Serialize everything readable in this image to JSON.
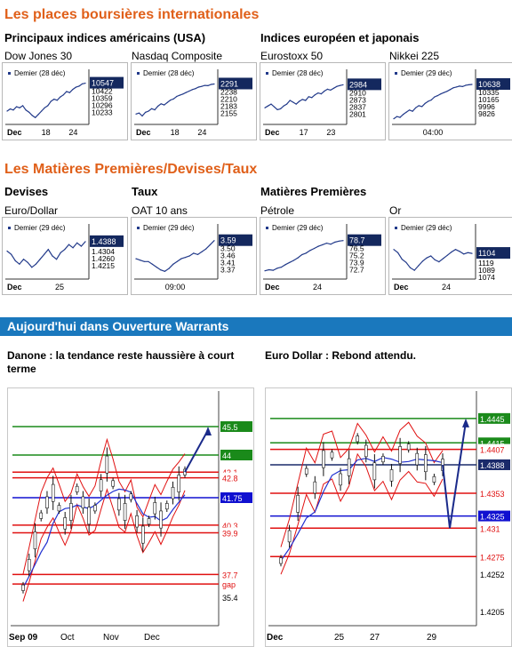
{
  "headings": {
    "indices": "Les places boursières internationales",
    "us": "Principaux indices américains (USA)",
    "eu": "Indices européen et japonais",
    "commodities": "Les Matières Premières/Devises/Taux",
    "devises": "Devises",
    "taux": "Taux",
    "matieres": "Matières Premières",
    "warrants": "Aujourd'hui dans Ouverture Warrants"
  },
  "chart_data": [
    {
      "type": "line",
      "title": "Dow Jones 30",
      "legend": "Demier (28 déc)",
      "current": "10547",
      "yticks": [
        "10422",
        "10359",
        "10296",
        "10233"
      ],
      "xticks": [
        "Dec",
        "18",
        "24"
      ],
      "ylim": [
        10200,
        10560
      ],
      "values": [
        10290,
        10310,
        10300,
        10330,
        10320,
        10340,
        10300,
        10280,
        10250,
        10230,
        10260,
        10290,
        10320,
        10340,
        10380,
        10400,
        10390,
        10420,
        10440,
        10470,
        10460,
        10490,
        10510,
        10520,
        10540,
        10547
      ]
    },
    {
      "type": "line",
      "title": "Nasdaq Composite",
      "legend": "Demier (28 déc)",
      "current": "2291",
      "yticks": [
        "2238",
        "2210",
        "2183",
        "2155"
      ],
      "xticks": [
        "Dec",
        "18",
        "24"
      ],
      "ylim": [
        2140,
        2300
      ],
      "values": [
        2168,
        2172,
        2160,
        2175,
        2180,
        2190,
        2185,
        2200,
        2210,
        2205,
        2215,
        2225,
        2230,
        2240,
        2245,
        2250,
        2256,
        2262,
        2268,
        2272,
        2278,
        2281,
        2285,
        2284,
        2289,
        2291
      ]
    },
    {
      "type": "line",
      "title": "Eurostoxx 50",
      "legend": "Demier (28 déc)",
      "current": "2984",
      "yticks": [
        "2910",
        "2873",
        "2837",
        "2801"
      ],
      "xticks": [
        "Dec",
        "17",
        "23"
      ],
      "ylim": [
        2790,
        3000
      ],
      "values": [
        2860,
        2870,
        2880,
        2865,
        2850,
        2855,
        2870,
        2880,
        2900,
        2890,
        2880,
        2895,
        2905,
        2900,
        2920,
        2915,
        2930,
        2940,
        2935,
        2950,
        2960,
        2955,
        2965,
        2975,
        2980,
        2984
      ]
    },
    {
      "type": "line",
      "title": "Nikkei 225",
      "legend": "Demier (29 déc)",
      "current": "10638",
      "yticks": [
        "10335",
        "10165",
        "9996",
        "9826"
      ],
      "xticks": [
        "04:00"
      ],
      "ylim": [
        9800,
        10700
      ],
      "values": [
        9850,
        9900,
        9880,
        9950,
        10000,
        10050,
        10020,
        10100,
        10150,
        10130,
        10200,
        10250,
        10280,
        10350,
        10380,
        10420,
        10450,
        10480,
        10520,
        10560,
        10580,
        10600,
        10590,
        10620,
        10630,
        10638
      ]
    },
    {
      "type": "line",
      "title": "Euro/Dollar",
      "legend": "Demier (29 déc)",
      "current": "1.4388",
      "yticks": [
        "1.4304",
        "1.4260",
        "1.4215"
      ],
      "xticks": [
        "Dec",
        "25"
      ],
      "ylim": [
        1.418,
        1.442
      ],
      "values": [
        1.433,
        1.431,
        1.427,
        1.425,
        1.428,
        1.426,
        1.423,
        1.425,
        1.428,
        1.431,
        1.434,
        1.43,
        1.428,
        1.432,
        1.434,
        1.437,
        1.435,
        1.438,
        1.436,
        1.4388
      ]
    },
    {
      "type": "line",
      "title": "OAT 10 ans",
      "legend": "Demier (29 déc)",
      "current": "3.59",
      "yticks": [
        "3.50",
        "3.46",
        "3.41",
        "3.37"
      ],
      "xticks": [
        "09:00"
      ],
      "ylim": [
        3.34,
        3.62
      ],
      "values": [
        3.46,
        3.45,
        3.44,
        3.44,
        3.42,
        3.4,
        3.38,
        3.37,
        3.39,
        3.42,
        3.44,
        3.46,
        3.47,
        3.48,
        3.5,
        3.49,
        3.51,
        3.53,
        3.56,
        3.59
      ]
    },
    {
      "type": "line",
      "title": "Pétrole",
      "legend": "Demier (29 déc)",
      "current": "78.7",
      "yticks": [
        "76.5",
        "75.2",
        "73.9",
        "72.7"
      ],
      "xticks": [
        "Dec",
        "24"
      ],
      "ylim": [
        72,
        79.5
      ],
      "values": [
        72.9,
        73.1,
        73.0,
        73.4,
        73.6,
        74.1,
        74.5,
        74.9,
        75.4,
        76.0,
        76.3,
        76.8,
        77.2,
        77.6,
        77.9,
        78.2,
        78.0,
        78.4,
        78.6,
        78.7
      ]
    },
    {
      "type": "line",
      "title": "Or",
      "legend": "Demier (29 déc)",
      "current": "1104",
      "yticks": [
        "1119",
        "1089",
        "1074"
      ],
      "xticks": [
        "Dec",
        "24"
      ],
      "ylim": [
        1070,
        1130
      ],
      "values": [
        1110,
        1105,
        1095,
        1090,
        1082,
        1078,
        1085,
        1092,
        1097,
        1100,
        1094,
        1091,
        1096,
        1101,
        1106,
        1110,
        1107,
        1103,
        1105,
        1104
      ]
    },
    {
      "type": "line",
      "title": "Danone : la tendance reste haussière à court terme",
      "xticks": [
        "Sep 09",
        "Oct",
        "Nov",
        "Dec"
      ],
      "yticks": [
        "35.4"
      ],
      "levels": [
        {
          "value": 45.5,
          "label": "45.5",
          "color": "#1a8a1a"
        },
        {
          "value": 44,
          "label": "44",
          "color": "#1a8a1a"
        },
        {
          "value": 43.1,
          "label": "43.1",
          "color": "#e01010"
        },
        {
          "value": 42.8,
          "label": "42.8",
          "color": "#e01010"
        },
        {
          "value": 41.75,
          "label": "41.75",
          "color": "#1010d0"
        },
        {
          "value": 40.3,
          "label": "40.3",
          "color": "#e01010"
        },
        {
          "value": 39.9,
          "label": "39.9",
          "color": "#e01010"
        },
        {
          "value": 37.7,
          "label": "37.7",
          "color": "#e01010"
        },
        {
          "value": 37.2,
          "label": "gap",
          "color": "#e01010"
        }
      ],
      "ylim": [
        35,
        47
      ],
      "values": [
        37.0,
        38.2,
        39.5,
        40.8,
        41.5,
        42.0,
        41.2,
        40.4,
        41.0,
        42.2,
        41.5,
        40.8,
        41.2,
        42.4,
        43.5,
        42.5,
        41.4,
        41.0,
        41.8,
        40.5,
        39.8,
        40.5,
        41.2,
        40.6,
        41.3,
        42.0,
        42.5,
        43.1
      ]
    },
    {
      "type": "line",
      "title": "Euro Dollar : Rebond attendu.",
      "xticks": [
        "Dec",
        "25",
        "27",
        "29"
      ],
      "yticks": [
        "1.4252",
        "1.4205"
      ],
      "levels": [
        {
          "value": 1.4445,
          "label": "1.4445",
          "color": "#1a8a1a"
        },
        {
          "value": 1.4415,
          "label": "1.4415",
          "color": "#1a8a1a"
        },
        {
          "value": 1.4407,
          "label": "1.4407",
          "color": "#e01010"
        },
        {
          "value": 1.4388,
          "label": "1.4388",
          "color": "#1a2a6a"
        },
        {
          "value": 1.4353,
          "label": "1.4353",
          "color": "#e01010"
        },
        {
          "value": 1.4325,
          "label": "1.4325",
          "color": "#1010d0"
        },
        {
          "value": 1.431,
          "label": "1.431",
          "color": "#e01010"
        },
        {
          "value": 1.4275,
          "label": "1.4275",
          "color": "#e01010"
        }
      ],
      "ylim": [
        1.419,
        1.447
      ],
      "values": [
        1.427,
        1.43,
        1.434,
        1.438,
        1.436,
        1.4395,
        1.44,
        1.437,
        1.4385,
        1.442,
        1.4405,
        1.438,
        1.4395,
        1.4375,
        1.44,
        1.441,
        1.4395,
        1.439,
        1.437,
        1.4388
      ]
    }
  ]
}
